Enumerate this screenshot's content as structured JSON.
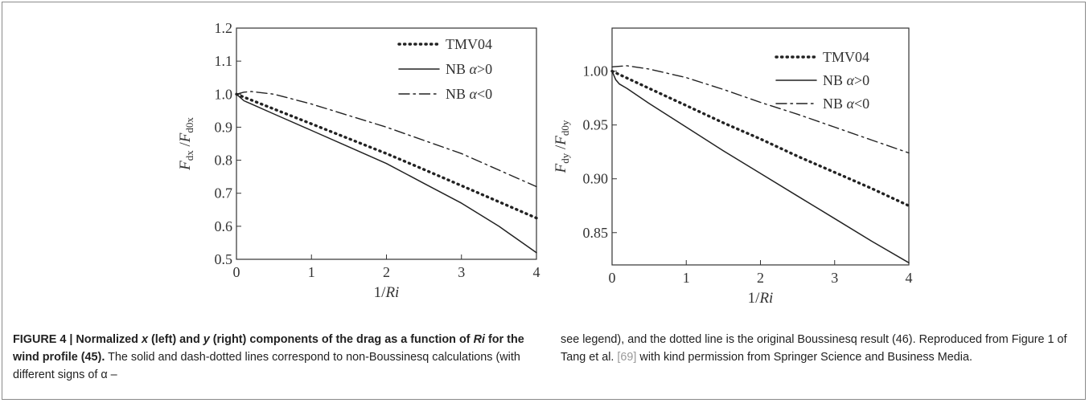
{
  "chart_data": [
    {
      "type": "line",
      "xlabel": "1/Ri",
      "ylabel": "F_dx/F_d0x",
      "xlim": [
        0,
        4
      ],
      "ylim": [
        0.5,
        1.2
      ],
      "x_ticks": [
        "0",
        "1",
        "2",
        "3",
        "4"
      ],
      "y_ticks": [
        "0.5",
        "0.6",
        "0.7",
        "0.8",
        "0.9",
        "1.0",
        "1.1",
        "1.2"
      ],
      "grid": false,
      "legend_position": "top-right",
      "series": [
        {
          "name": "TMV04",
          "style": "dotted",
          "x": [
            0,
            0.5,
            1,
            1.5,
            2,
            2.5,
            3,
            3.5,
            4
          ],
          "y": [
            1.0,
            0.955,
            0.91,
            0.865,
            0.82,
            0.772,
            0.723,
            0.674,
            0.625
          ]
        },
        {
          "name": "NB α>0",
          "style": "solid",
          "x": [
            0,
            0.05,
            0.1,
            0.2,
            0.5,
            1,
            1.5,
            2,
            2.5,
            3,
            3.5,
            4
          ],
          "y": [
            1.0,
            0.99,
            0.98,
            0.97,
            0.94,
            0.89,
            0.84,
            0.79,
            0.73,
            0.67,
            0.6,
            0.52
          ]
        },
        {
          "name": "NB α<0",
          "style": "dash-dot",
          "x": [
            0,
            0.1,
            0.2,
            0.5,
            1,
            1.5,
            2,
            2.5,
            3,
            3.5,
            4
          ],
          "y": [
            1.0,
            1.006,
            1.008,
            1.0,
            0.97,
            0.935,
            0.9,
            0.86,
            0.82,
            0.77,
            0.72
          ]
        }
      ]
    },
    {
      "type": "line",
      "xlabel": "1/Ri",
      "ylabel": "F_dy/F_d0y",
      "xlim": [
        0,
        4
      ],
      "ylim": [
        0.82,
        1.04
      ],
      "x_ticks": [
        "0",
        "1",
        "2",
        "3",
        "4"
      ],
      "y_ticks": [
        "0.85",
        "0.90",
        "0.95",
        "1.00"
      ],
      "grid": false,
      "legend_position": "top-right",
      "series": [
        {
          "name": "TMV04",
          "style": "dotted",
          "x": [
            0,
            0.5,
            1,
            1.5,
            2,
            2.5,
            3,
            3.5,
            4
          ],
          "y": [
            1.0,
            0.984,
            0.968,
            0.952,
            0.937,
            0.921,
            0.906,
            0.891,
            0.875
          ]
        },
        {
          "name": "NB α>0",
          "style": "solid",
          "x": [
            0,
            0.05,
            0.1,
            0.2,
            0.5,
            1,
            1.5,
            2,
            2.5,
            3,
            3.5,
            4
          ],
          "y": [
            1.0,
            0.992,
            0.988,
            0.984,
            0.97,
            0.948,
            0.926,
            0.905,
            0.884,
            0.863,
            0.842,
            0.822
          ]
        },
        {
          "name": "NB α<0",
          "style": "dash-dot",
          "x": [
            0,
            0.2,
            0.5,
            1,
            1.5,
            2,
            2.5,
            3,
            3.5,
            4
          ],
          "y": [
            1.004,
            1.005,
            1.002,
            0.994,
            0.983,
            0.971,
            0.96,
            0.948,
            0.936,
            0.924
          ]
        }
      ]
    }
  ],
  "caption": {
    "label": "FIGURE 4 | Normalized",
    "b2": "(left) and",
    "b3": "(right) components of the drag as a function of",
    "b4": "for the wind profile (45).",
    "var_x": "x",
    "var_y": "y",
    "var_ri": "Ri",
    "text_left": "The solid and dash-dotted lines correspond to non-Boussinesq calculations (with different signs of α –",
    "text_right_1": "see legend), and the dotted line is the original Boussinesq result (46). Reproduced from Figure 1 of Tang et al.",
    "ref": "[69]",
    "text_right_2": "with kind permission from Springer Science and Business Media."
  }
}
